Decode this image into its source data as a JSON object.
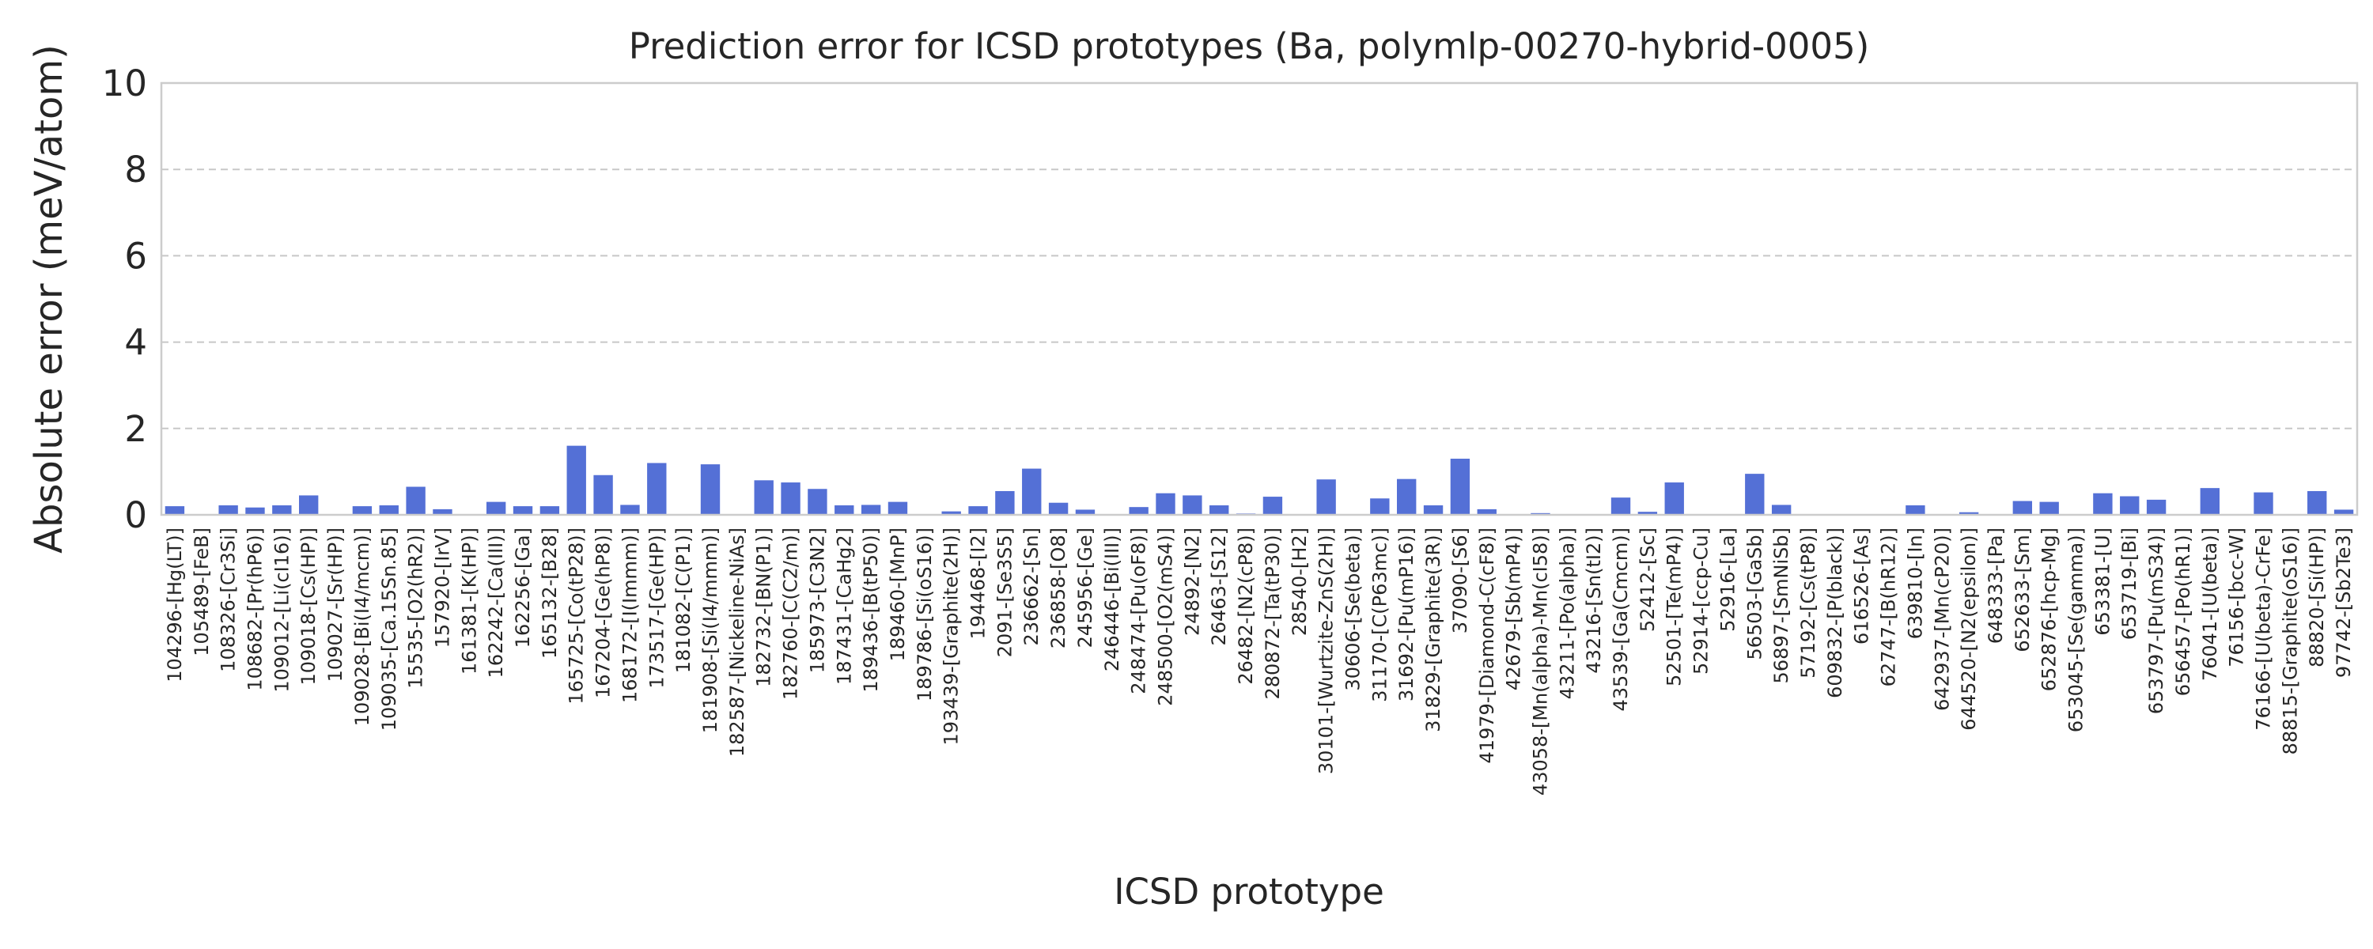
{
  "chart_data": {
    "type": "bar",
    "title": "Prediction error for ICSD prototypes (Ba, polymlp-00270-hybrid-0005)",
    "xlabel": "ICSD prototype",
    "ylabel": "Absolute error (meV/atom)",
    "ylim": [
      0,
      10
    ],
    "yticks": [
      0,
      2,
      4,
      6,
      8,
      10
    ],
    "grid": "y-dashed",
    "bar_color": "#5470d6",
    "categories": [
      "104296-[Hg(LT)]",
      "105489-[FeB]",
      "108326-[Cr3Si]",
      "108682-[Pr(hP6)]",
      "109012-[Li(cI16)]",
      "109018-[Cs(HP)]",
      "109027-[Sr(HP)]",
      "109028-[Bi(I4/mcm)]",
      "109035-[Ca.15Sn.85]",
      "15535-[O2(hR2)]",
      "157920-[IrV]",
      "161381-[K(HP)]",
      "162242-[Ca(III)]",
      "162256-[Ga]",
      "165132-[B28]",
      "165725-[Co(tP28)]",
      "167204-[Ge(hP8)]",
      "168172-[I(Immm)]",
      "173517-[Ge(HP)]",
      "181082-[C(P1)]",
      "181908-[Si(I4/mmm)]",
      "182587-[Nickeline-NiAs]",
      "182732-[BN(P1)]",
      "182760-[C(C2/m)]",
      "185973-[C3N2]",
      "187431-[CaHg2]",
      "189436-[B(tP50)]",
      "189460-[MnP]",
      "189786-[Si(oS16)]",
      "193439-[Graphite(2H)]",
      "194468-[I2]",
      "2091-[Se3S5]",
      "236662-[Sn]",
      "236858-[O8]",
      "245956-[Ge]",
      "246446-[Bi(III)]",
      "248474-[Pu(oF8)]",
      "248500-[O2(mS4)]",
      "24892-[N2]",
      "26463-[S12]",
      "26482-[N2(cP8)]",
      "280872-[Ta(tP30)]",
      "28540-[H2]",
      "30101-[Wurtzite-ZnS(2H)]",
      "30606-[Se(beta)]",
      "31170-[C(P63mc)]",
      "31692-[Pu(mP16)]",
      "31829-[Graphite(3R)]",
      "37090-[S6]",
      "41979-[Diamond-C(cF8)]",
      "42679-[Sb(mP4)]",
      "43058-[Mn(alpha)-Mn(cI58)]",
      "43211-[Po(alpha)]",
      "43216-[Sn(tI2)]",
      "43539-[Ga(Cmcm)]",
      "52412-[Sc]",
      "52501-[Te(mP4)]",
      "52914-[ccp-Cu]",
      "52916-[La]",
      "56503-[GaSb]",
      "56897-[SmNiSb]",
      "57192-[Cs(tP8)]",
      "609832-[P(black)]",
      "616526-[As]",
      "62747-[B(hR12)]",
      "639810-[In]",
      "642937-[Mn(cP20)]",
      "644520-[N2(epsilon)]",
      "648333-[Pa]",
      "652633-[Sm]",
      "652876-[hcp-Mg]",
      "653045-[Se(gamma)]",
      "653381-[U]",
      "653719-[Bi]",
      "653797-[Pu(mS34)]",
      "656457-[Po(hR1)]",
      "76041-[U(beta)]",
      "76156-[bcc-W]",
      "76166-[U(beta)-CrFe]",
      "88815-[Graphite(oS16)]",
      "88820-[Si(HP)]",
      "97742-[Sb2Te3]"
    ],
    "values": [
      0.2,
      0.0,
      0.22,
      0.17,
      0.22,
      0.45,
      0.0,
      0.2,
      0.22,
      0.65,
      0.13,
      0.0,
      0.3,
      0.2,
      0.2,
      1.6,
      0.92,
      0.23,
      1.2,
      0.0,
      1.17,
      0.0,
      0.8,
      0.75,
      0.6,
      0.22,
      0.23,
      0.3,
      0.0,
      0.08,
      0.2,
      0.55,
      1.07,
      0.28,
      0.12,
      0.0,
      0.18,
      0.5,
      0.45,
      0.22,
      0.03,
      0.42,
      0.0,
      0.82,
      0.0,
      0.38,
      0.83,
      0.22,
      1.3,
      0.13,
      0.0,
      0.04,
      0.0,
      0.0,
      0.4,
      0.07,
      0.75,
      0.0,
      0.0,
      0.95,
      0.23,
      0.0,
      0.0,
      0.0,
      0.0,
      0.22,
      0.0,
      0.06,
      0.0,
      0.32,
      0.3,
      0.0,
      0.5,
      0.43,
      0.35,
      0.0,
      0.62,
      0.0,
      0.52,
      0.0,
      0.55,
      0.12
    ]
  }
}
